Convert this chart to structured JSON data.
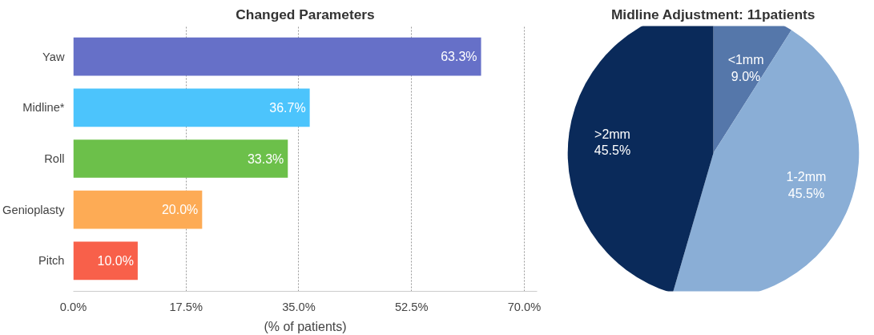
{
  "chart_data": [
    {
      "type": "bar",
      "title": "Changed Parameters",
      "orientation": "horizontal",
      "xlabel": "(% of patients)",
      "categories": [
        "Yaw",
        "Midline*",
        "Roll",
        "Genioplasty",
        "Pitch"
      ],
      "values": [
        63.3,
        36.7,
        33.3,
        20.0,
        10.0
      ],
      "colors": [
        "#6670c8",
        "#4cc4fc",
        "#6cc04a",
        "#fdab55",
        "#f8604a"
      ],
      "value_labels": [
        "63.3%",
        "36.7%",
        "33.3%",
        "20.0%",
        "10.0%"
      ],
      "xlim": [
        0,
        72
      ],
      "xticks": [
        {
          "value": 0,
          "label": "0.0%"
        },
        {
          "value": 17.5,
          "label": "17.5%"
        },
        {
          "value": 35,
          "label": "35.0%"
        },
        {
          "value": 52.5,
          "label": "52.5%"
        },
        {
          "value": 70,
          "label": "70.0%"
        }
      ],
      "grid": "x"
    },
    {
      "type": "pie",
      "title": "Midline Adjustment: 11patients",
      "categories": [
        "<1mm",
        "1-2mm",
        ">2mm"
      ],
      "values": [
        9.0,
        45.5,
        45.5
      ],
      "colors": [
        "#5577aa",
        "#8aaed6",
        "#0a2a5a"
      ],
      "value_labels": [
        "9.0%",
        "45.5%",
        "45.5%"
      ]
    }
  ]
}
